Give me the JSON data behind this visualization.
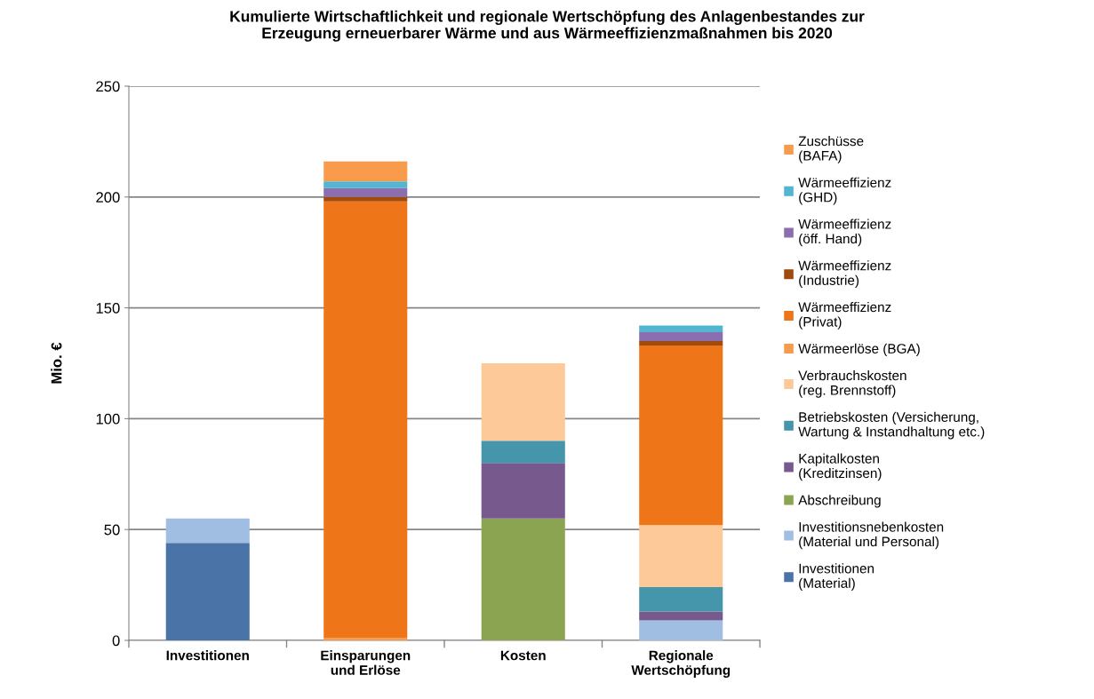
{
  "chart_data": {
    "type": "bar",
    "stacked": true,
    "title": "Kumulierte Wirtschaftlichkeit und regionale Wertschöpfung des Anlagenbestandes zur\nErzeugung erneuerbarer Wärme und aus Wärmeeffizienzmaßnahmen bis 2020",
    "ylabel": "Mio. €",
    "categories": [
      "Investitionen",
      "Einsparungen\nund Erlöse",
      "Kosten",
      "Regionale\nWertschöpfung"
    ],
    "ylim": [
      0,
      250
    ],
    "yticks": [
      0,
      50,
      100,
      150,
      200,
      250
    ],
    "grid": "y",
    "legend": "right",
    "series": [
      {
        "name": "Investitionen\n(Material)",
        "color": "#4a74a8",
        "values": [
          44,
          null,
          null,
          null
        ]
      },
      {
        "name": "Investitionsnebenkosten\n(Material und Personal)",
        "color": "#a0bde2",
        "values": [
          11,
          null,
          null,
          9
        ]
      },
      {
        "name": "Abschreibung",
        "color": "#8ba452",
        "values": [
          null,
          null,
          55,
          null
        ]
      },
      {
        "name": "Kapitalkosten\n(Kreditzinsen)",
        "color": "#77598e",
        "values": [
          null,
          null,
          25,
          4
        ]
      },
      {
        "name": "Betriebskosten (Versicherung,\nWartung & Instandhaltung etc.)",
        "color": "#4596ab",
        "values": [
          null,
          null,
          10,
          11
        ]
      },
      {
        "name": "Verbrauchskosten\n(reg. Brennstoff)",
        "color": "#fec999",
        "values": [
          null,
          null,
          35,
          28
        ]
      },
      {
        "name": "Wärmeerlöse (BGA)",
        "color": "#f79a4b",
        "values": [
          null,
          1,
          null,
          null
        ]
      },
      {
        "name": "Wärmeeffizienz\n(Privat)",
        "color": "#ee7518",
        "values": [
          null,
          197,
          null,
          81
        ]
      },
      {
        "name": "Wärmeeffizienz\n(Industrie)",
        "color": "#a04b0d",
        "values": [
          null,
          2,
          null,
          2
        ]
      },
      {
        "name": "Wärmeeffizienz\n(öff. Hand)",
        "color": "#8b6ead",
        "values": [
          null,
          4,
          null,
          4
        ]
      },
      {
        "name": "Wärmeeffizienz\n(GHD)",
        "color": "#52b5d1",
        "values": [
          null,
          3,
          null,
          3
        ]
      },
      {
        "name": "Zuschüsse\n(BAFA)",
        "color": "#f89b4d",
        "values": [
          null,
          9,
          null,
          null
        ]
      }
    ]
  }
}
